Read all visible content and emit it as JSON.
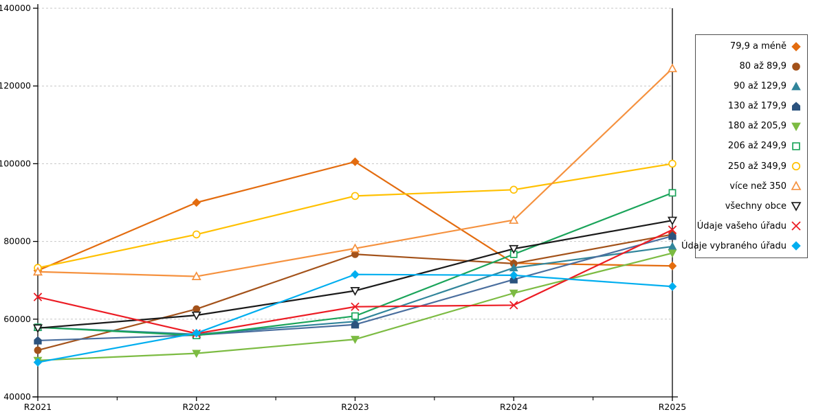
{
  "chart_data": {
    "type": "line",
    "title": "",
    "xlabel": "",
    "ylabel": "",
    "categories": [
      "R2021",
      "R2022",
      "R2023",
      "R2024",
      "R2025"
    ],
    "ylim": [
      40000,
      140000
    ],
    "y_ticks": [
      40000,
      60000,
      80000,
      100000,
      120000,
      140000
    ],
    "grid": "horizontal-dashed",
    "grid_color": "#C6C6C6",
    "axis_color": "#000000",
    "legend_position": "right",
    "series": [
      {
        "name": "79,9 a méně",
        "color": "#E36C0F",
        "marker": "diamond",
        "fill": "solid",
        "values": [
          72500,
          90000,
          100500,
          74400,
          73700
        ]
      },
      {
        "name": "80 až 89,9",
        "color": "#A3521A",
        "marker": "circle",
        "fill": "solid",
        "values": [
          52000,
          62600,
          76700,
          74300,
          81800
        ]
      },
      {
        "name": "90 až 129,9",
        "color": "#31859B",
        "marker": "triangle-up",
        "fill": "solid",
        "values": [
          57900,
          56100,
          59400,
          73200,
          78700
        ]
      },
      {
        "name": "130 až 179,9",
        "color": "#2B537E",
        "line_color": "#4A6E9E",
        "marker": "pentagon",
        "fill": "solid",
        "values": [
          54500,
          55900,
          58600,
          70200,
          81400
        ]
      },
      {
        "name": "180 až 205,9",
        "color": "#7CBB42",
        "marker": "triangle-down",
        "fill": "solid",
        "values": [
          49400,
          51200,
          54800,
          66700,
          77000
        ]
      },
      {
        "name": "206 až 249,9",
        "color": "#1AA45A",
        "marker": "square",
        "fill": "open",
        "values": [
          57900,
          55800,
          60800,
          76700,
          92500
        ]
      },
      {
        "name": "250 až 349,9",
        "color": "#FFC000",
        "marker": "circle",
        "fill": "open",
        "values": [
          73200,
          81800,
          91700,
          93300,
          100000
        ]
      },
      {
        "name": "více než 350",
        "color": "#F5913E",
        "marker": "triangle-up",
        "fill": "open",
        "values": [
          72200,
          71000,
          78200,
          85500,
          124500
        ]
      },
      {
        "name": "všechny obce",
        "color": "#1A1A1A",
        "marker": "triangle-down",
        "fill": "open",
        "values": [
          57700,
          61000,
          67300,
          78100,
          85400
        ]
      },
      {
        "name": "Údaje vašeho úřadu",
        "color": "#EC1C24",
        "marker": "x",
        "fill": "open",
        "values": [
          65700,
          56300,
          63200,
          63600,
          83000
        ]
      },
      {
        "name": "Údaje vybraného úřadu",
        "color": "#00AEEF",
        "marker": "diamond",
        "fill": "solid",
        "values": [
          48900,
          56400,
          71500,
          71300,
          68400
        ]
      }
    ]
  }
}
